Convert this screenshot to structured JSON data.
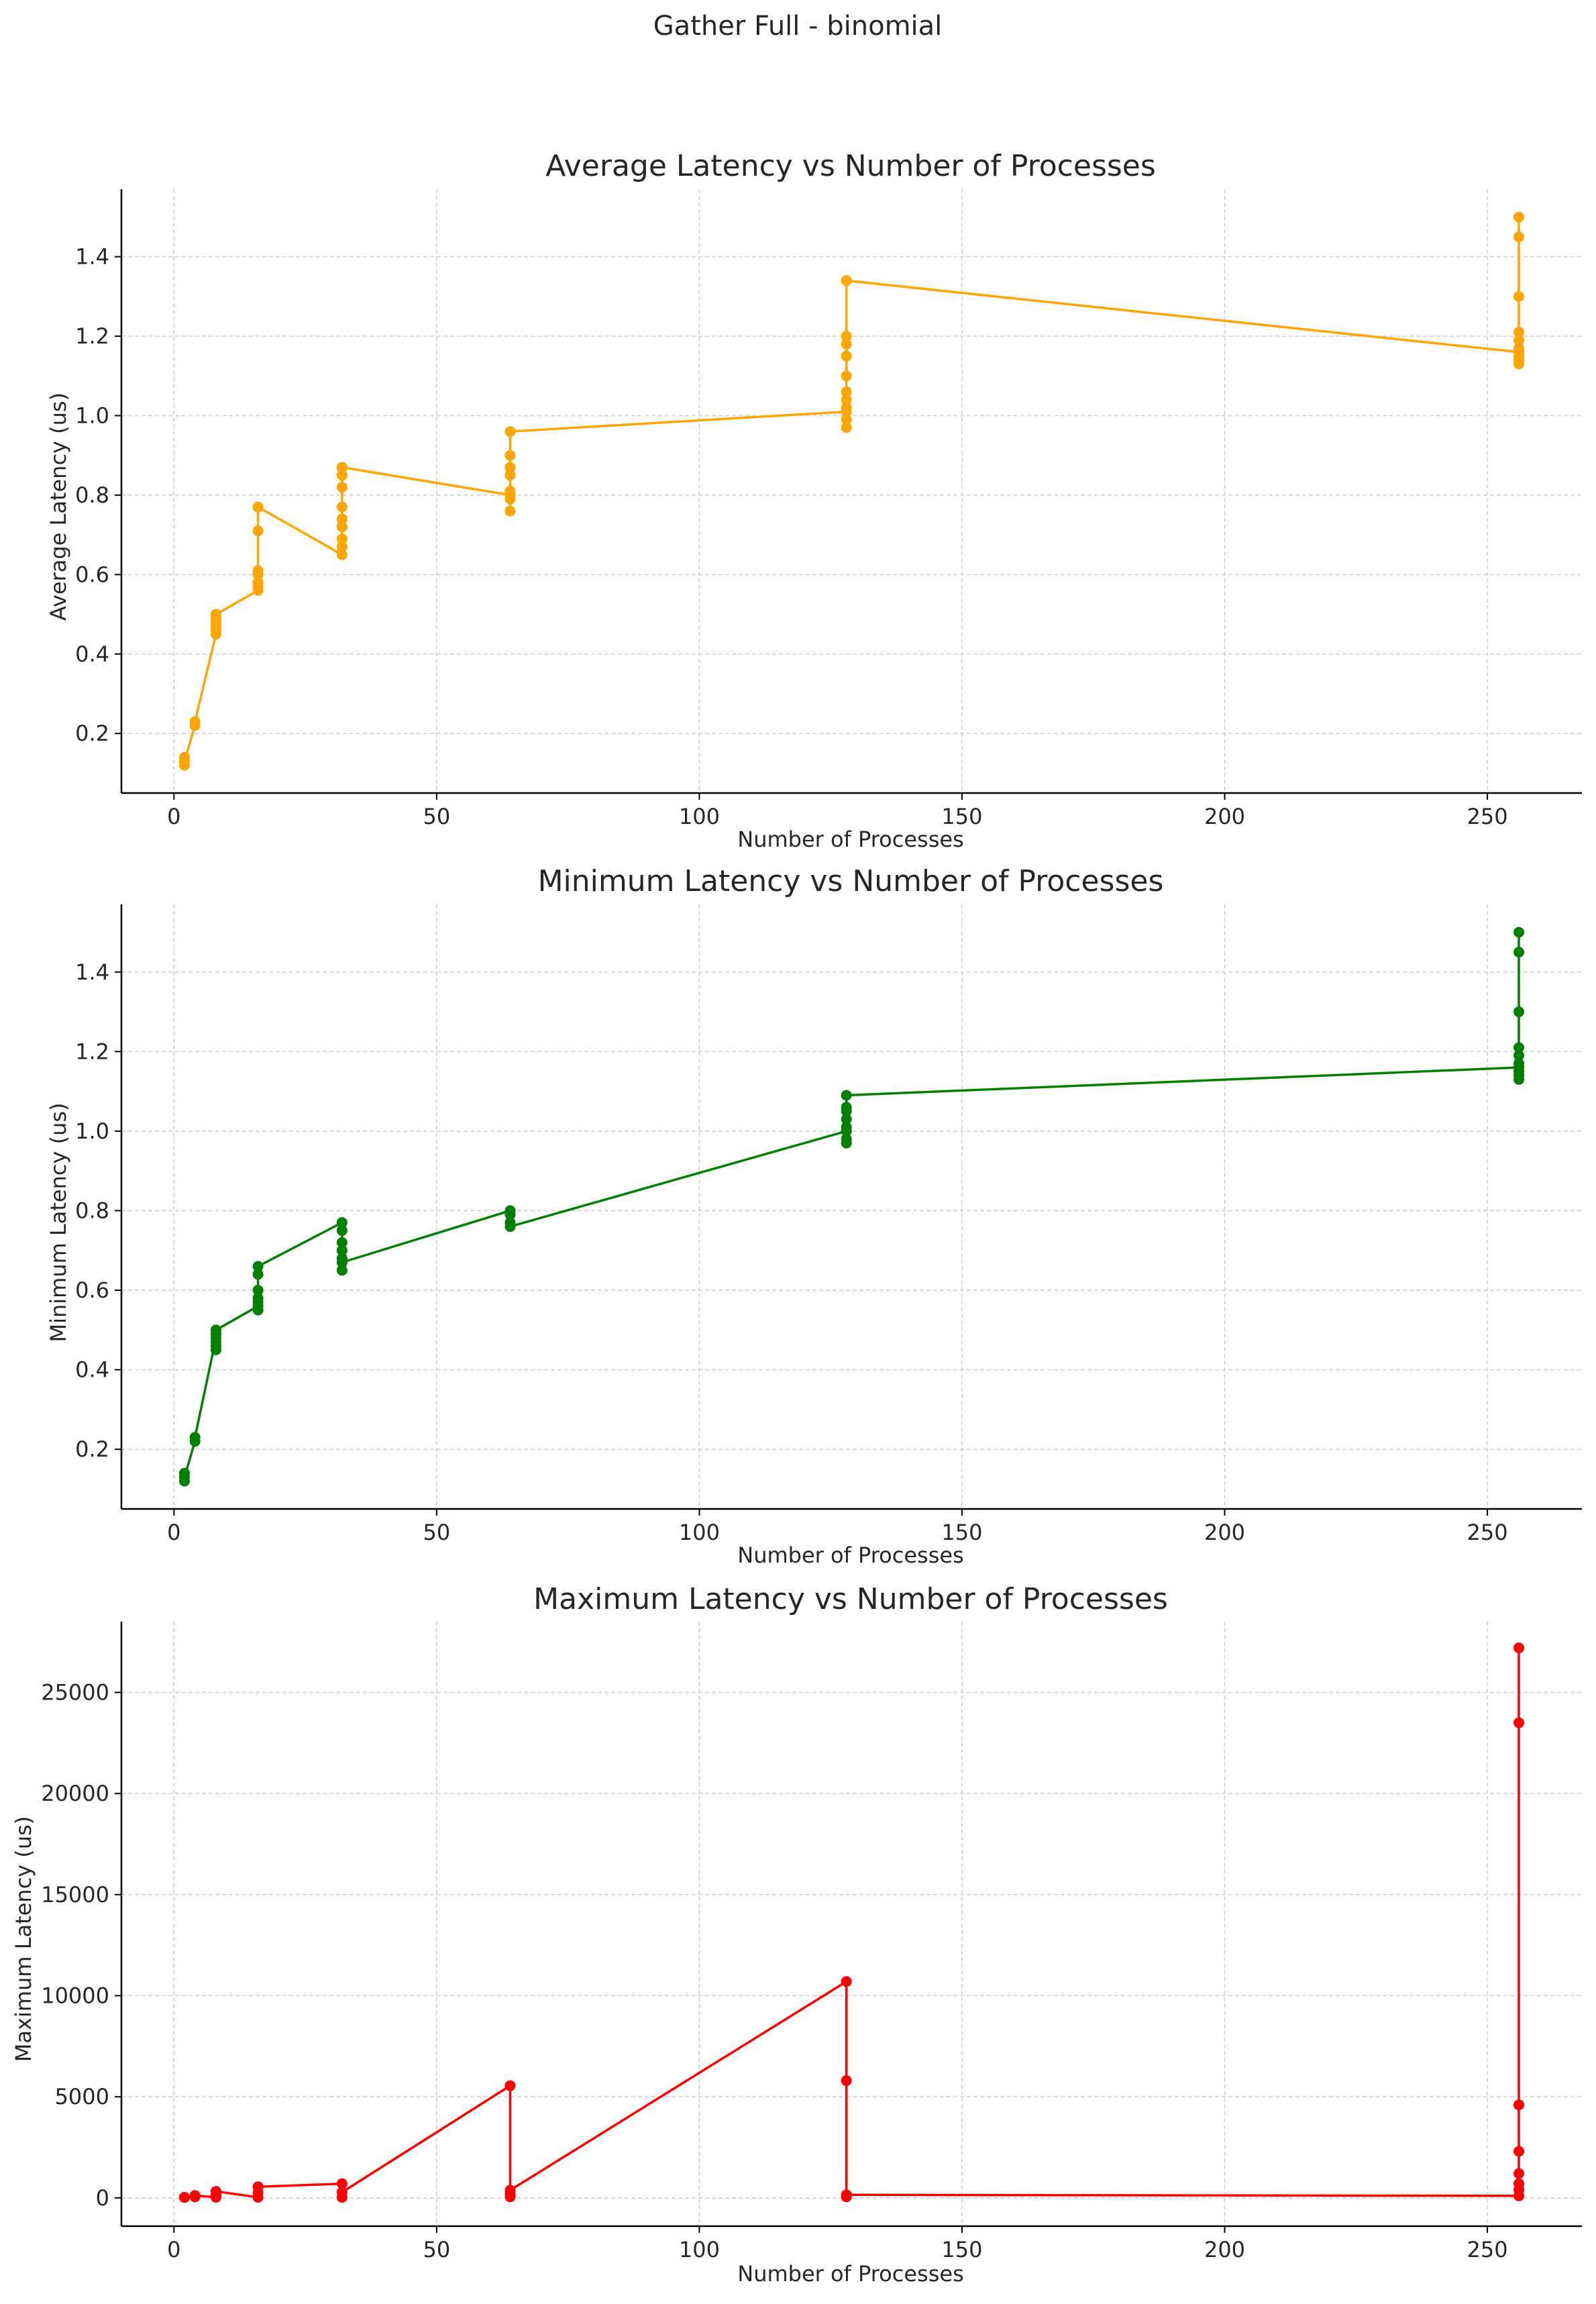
{
  "figure": {
    "suptitle": "Gather Full - binomial"
  },
  "chart_data": [
    {
      "type": "line",
      "title": "Average Latency vs Number of Processes",
      "xlabel": "Number of Processes",
      "ylabel": "Average Latency (us)",
      "xlim": [
        -10,
        268
      ],
      "ylim": [
        0.05,
        1.57
      ],
      "xticks": [
        0,
        50,
        100,
        150,
        200,
        250
      ],
      "yticks": [
        0.2,
        0.4,
        0.6,
        0.8,
        1.0,
        1.2,
        1.4
      ],
      "ytick_labels": [
        "0.2",
        "0.4",
        "0.6",
        "0.8",
        "1.0",
        "1.2",
        "1.4"
      ],
      "grid": true,
      "color": "#FFA500",
      "series": [
        {
          "x": [
            2,
            2,
            2,
            4,
            4,
            8,
            8,
            8,
            8,
            8,
            8,
            16,
            16,
            16,
            16,
            16,
            16,
            16,
            32,
            32,
            32,
            32,
            32,
            32,
            32,
            32,
            32,
            32,
            64,
            64,
            64,
            64,
            64,
            64,
            64,
            64,
            128,
            128,
            128,
            128,
            128,
            128,
            128,
            128,
            128,
            128,
            128,
            256,
            256,
            256,
            256,
            256,
            256,
            256,
            256,
            256,
            256
          ],
          "y": [
            0.14,
            0.12,
            0.13,
            0.22,
            0.23,
            0.45,
            0.46,
            0.47,
            0.48,
            0.49,
            0.5,
            0.56,
            0.57,
            0.58,
            0.6,
            0.61,
            0.71,
            0.77,
            0.65,
            0.67,
            0.69,
            0.72,
            0.74,
            0.77,
            0.82,
            0.85,
            0.87,
            0.87,
            0.8,
            0.76,
            0.79,
            0.81,
            0.85,
            0.87,
            0.9,
            0.96,
            1.01,
            0.97,
            0.99,
            1.02,
            1.04,
            1.06,
            1.1,
            1.15,
            1.18,
            1.2,
            1.34,
            1.16,
            1.13,
            1.14,
            1.15,
            1.17,
            1.19,
            1.21,
            1.3,
            1.45,
            1.5
          ]
        }
      ]
    },
    {
      "type": "line",
      "title": "Minimum Latency vs Number of Processes",
      "xlabel": "Number of Processes",
      "ylabel": "Minimum Latency (us)",
      "xlim": [
        -10,
        268
      ],
      "ylim": [
        0.05,
        1.57
      ],
      "xticks": [
        0,
        50,
        100,
        150,
        200,
        250
      ],
      "yticks": [
        0.2,
        0.4,
        0.6,
        0.8,
        1.0,
        1.2,
        1.4
      ],
      "ytick_labels": [
        "0.2",
        "0.4",
        "0.6",
        "0.8",
        "1.0",
        "1.2",
        "1.4"
      ],
      "grid": true,
      "color": "#008000",
      "series": [
        {
          "x": [
            2,
            2,
            2,
            4,
            4,
            8,
            8,
            8,
            8,
            8,
            8,
            16,
            16,
            16,
            16,
            16,
            16,
            16,
            32,
            32,
            32,
            32,
            32,
            32,
            32,
            32,
            64,
            64,
            64,
            64,
            64,
            128,
            128,
            128,
            128,
            128,
            128,
            128,
            128,
            256,
            256,
            256,
            256,
            256,
            256,
            256,
            256,
            256,
            256
          ],
          "y": [
            0.14,
            0.12,
            0.13,
            0.22,
            0.23,
            0.48,
            0.45,
            0.46,
            0.47,
            0.49,
            0.5,
            0.56,
            0.55,
            0.57,
            0.58,
            0.6,
            0.64,
            0.66,
            0.77,
            0.65,
            0.67,
            0.68,
            0.7,
            0.72,
            0.75,
            0.67,
            0.8,
            0.76,
            0.77,
            0.79,
            0.76,
            1.0,
            0.97,
            0.98,
            1.01,
            1.03,
            1.05,
            1.06,
            1.09,
            1.16,
            1.13,
            1.14,
            1.15,
            1.17,
            1.19,
            1.21,
            1.3,
            1.45,
            1.5
          ]
        }
      ]
    },
    {
      "type": "line",
      "title": "Maximum Latency vs Number of Processes",
      "xlabel": "Number of Processes",
      "ylabel": "Maximum Latency (us)",
      "xlim": [
        -10,
        268
      ],
      "ylim": [
        -1400,
        28500
      ],
      "xticks": [
        0,
        50,
        100,
        150,
        200,
        250
      ],
      "yticks": [
        0,
        5000,
        10000,
        15000,
        20000,
        25000
      ],
      "ytick_labels": [
        "0",
        "5000",
        "10000",
        "15000",
        "20000",
        "25000"
      ],
      "grid": true,
      "color": "#FF0000",
      "series": [
        {
          "x": [
            2,
            2,
            4,
            4,
            8,
            8,
            8,
            16,
            16,
            16,
            32,
            32,
            32,
            64,
            64,
            64,
            64,
            128,
            128,
            128,
            128,
            256,
            256,
            256,
            256,
            256,
            256,
            256,
            256
          ],
          "y": [
            20,
            30,
            50,
            120,
            30,
            150,
            320,
            30,
            250,
            550,
            700,
            30,
            280,
            5550,
            50,
            180,
            380,
            10700,
            5800,
            50,
            150,
            100,
            400,
            700,
            1200,
            2300,
            4600,
            23500,
            27200
          ]
        }
      ]
    }
  ]
}
